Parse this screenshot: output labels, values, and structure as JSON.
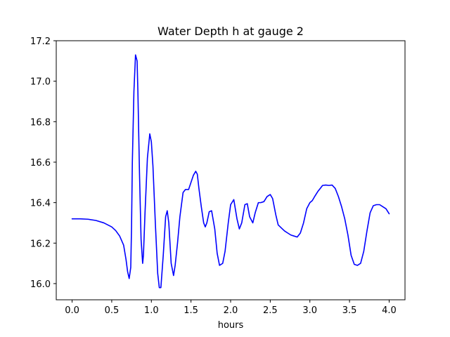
{
  "chart_data": {
    "type": "line",
    "title": "Water Depth h at gauge 2",
    "xlabel": "hours",
    "ylabel": "",
    "xlim": [
      -0.2,
      4.2
    ],
    "ylim": [
      15.92,
      17.2
    ],
    "x_ticks": [
      0.0,
      0.5,
      1.0,
      1.5,
      2.0,
      2.5,
      3.0,
      3.5,
      4.0
    ],
    "x_tick_labels": [
      "0.0",
      "0.5",
      "1.0",
      "1.5",
      "2.0",
      "2.5",
      "3.0",
      "3.5",
      "4.0"
    ],
    "y_ticks": [
      16.0,
      16.2,
      16.4,
      16.6,
      16.8,
      17.0,
      17.2
    ],
    "y_tick_labels": [
      "16.0",
      "16.2",
      "16.4",
      "16.6",
      "16.8",
      "17.0",
      "17.2"
    ],
    "grid": false,
    "colors": {
      "line": "#0000ff",
      "axes": "#000000",
      "background": "#ffffff"
    },
    "series": [
      {
        "x": [
          0.0,
          0.1,
          0.2,
          0.3,
          0.4,
          0.5,
          0.55,
          0.6,
          0.65,
          0.68,
          0.7,
          0.72,
          0.74,
          0.75,
          0.76,
          0.78,
          0.8,
          0.82,
          0.83,
          0.85,
          0.87,
          0.89,
          0.9,
          0.92,
          0.95,
          0.98,
          1.0,
          1.02,
          1.05,
          1.08,
          1.1,
          1.12,
          1.15,
          1.18,
          1.2,
          1.22,
          1.25,
          1.28,
          1.3,
          1.33,
          1.36,
          1.4,
          1.43,
          1.47,
          1.5,
          1.53,
          1.56,
          1.58,
          1.6,
          1.63,
          1.66,
          1.68,
          1.7,
          1.73,
          1.76,
          1.8,
          1.83,
          1.86,
          1.9,
          1.93,
          1.97,
          2.0,
          2.04,
          2.08,
          2.11,
          2.14,
          2.18,
          2.21,
          2.24,
          2.28,
          2.31,
          2.35,
          2.38,
          2.42,
          2.46,
          2.5,
          2.53,
          2.57,
          2.6,
          2.64,
          2.68,
          2.72,
          2.76,
          2.8,
          2.84,
          2.88,
          2.92,
          2.96,
          3.0,
          3.03,
          3.06,
          3.1,
          3.13,
          3.16,
          3.2,
          3.24,
          3.28,
          3.32,
          3.36,
          3.4,
          3.44,
          3.48,
          3.52,
          3.56,
          3.6,
          3.64,
          3.68,
          3.72,
          3.76,
          3.8,
          3.84,
          3.88,
          3.92,
          3.96,
          4.0
        ],
        "y": [
          16.32,
          16.32,
          16.318,
          16.312,
          16.3,
          16.28,
          16.262,
          16.235,
          16.19,
          16.12,
          16.06,
          16.025,
          16.08,
          16.28,
          16.6,
          16.95,
          17.13,
          17.1,
          16.95,
          16.55,
          16.22,
          16.1,
          16.14,
          16.35,
          16.62,
          16.74,
          16.7,
          16.58,
          16.3,
          16.05,
          15.98,
          15.98,
          16.14,
          16.33,
          16.36,
          16.3,
          16.1,
          16.04,
          16.09,
          16.2,
          16.33,
          16.45,
          16.465,
          16.465,
          16.5,
          16.535,
          16.555,
          16.54,
          16.47,
          16.38,
          16.3,
          16.28,
          16.3,
          16.355,
          16.36,
          16.27,
          16.15,
          16.09,
          16.1,
          16.16,
          16.3,
          16.39,
          16.415,
          16.32,
          16.27,
          16.3,
          16.39,
          16.395,
          16.33,
          16.3,
          16.35,
          16.4,
          16.4,
          16.405,
          16.43,
          16.44,
          16.42,
          16.34,
          16.29,
          16.275,
          16.26,
          16.25,
          16.24,
          16.235,
          16.23,
          16.25,
          16.3,
          16.37,
          16.4,
          16.41,
          16.43,
          16.455,
          16.47,
          16.485,
          16.487,
          16.485,
          16.487,
          16.47,
          16.43,
          16.38,
          16.32,
          16.24,
          16.14,
          16.095,
          16.09,
          16.1,
          16.16,
          16.26,
          16.35,
          16.385,
          16.39,
          16.39,
          16.38,
          16.37,
          16.345
        ]
      }
    ]
  }
}
